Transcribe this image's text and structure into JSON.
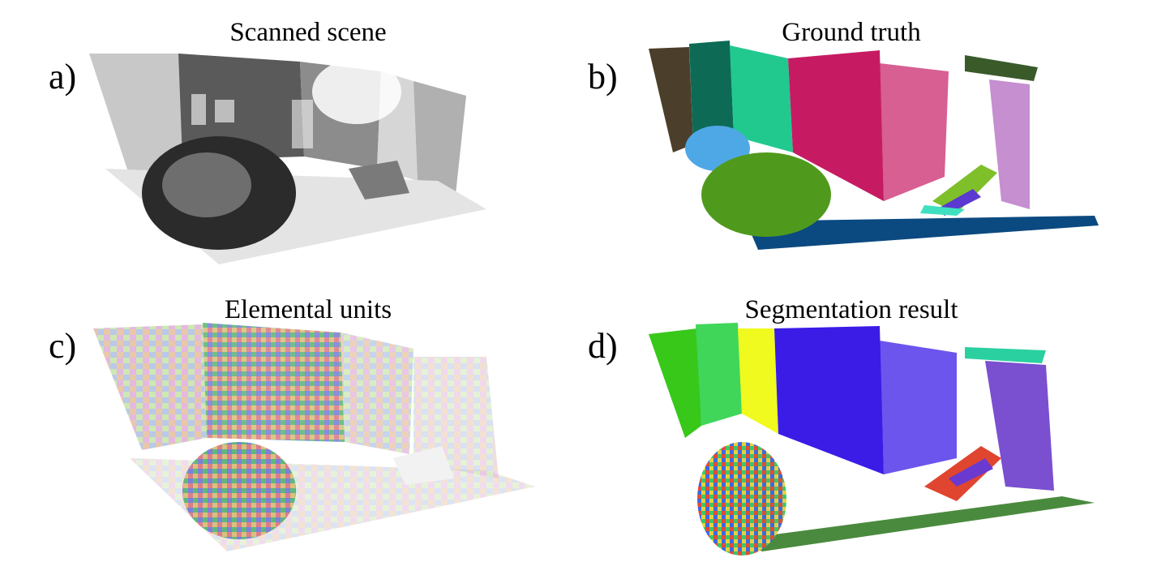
{
  "figure": {
    "panels": [
      {
        "letter": "a)",
        "title": "Scanned scene"
      },
      {
        "letter": "b)",
        "title": "Ground truth"
      },
      {
        "letter": "c)",
        "title": "Elemental units"
      },
      {
        "letter": "d)",
        "title": "Segmentation result"
      }
    ],
    "colors": {
      "scan_light": "#c8c8c8",
      "scan_mid": "#9a9a9a",
      "scan_dark": "#4a4a4a",
      "gt_brown": "#4b3f2b",
      "gt_darkgreen": "#0d6b55",
      "gt_teal": "#21c98f",
      "gt_magenta": "#c61b63",
      "gt_ground": "#0b4a80",
      "gt_bush": "#4f9a1c",
      "gt_skyblue": "#4fa8e6",
      "gt_lilac": "#c58fd0",
      "seg_green": "#37c81a",
      "seg_green2": "#3fd65a",
      "seg_yellow": "#f0fa1e",
      "seg_blue": "#3a1ce6",
      "seg_ground": "#4a8a3e",
      "seg_purple": "#7a4fd0"
    }
  }
}
